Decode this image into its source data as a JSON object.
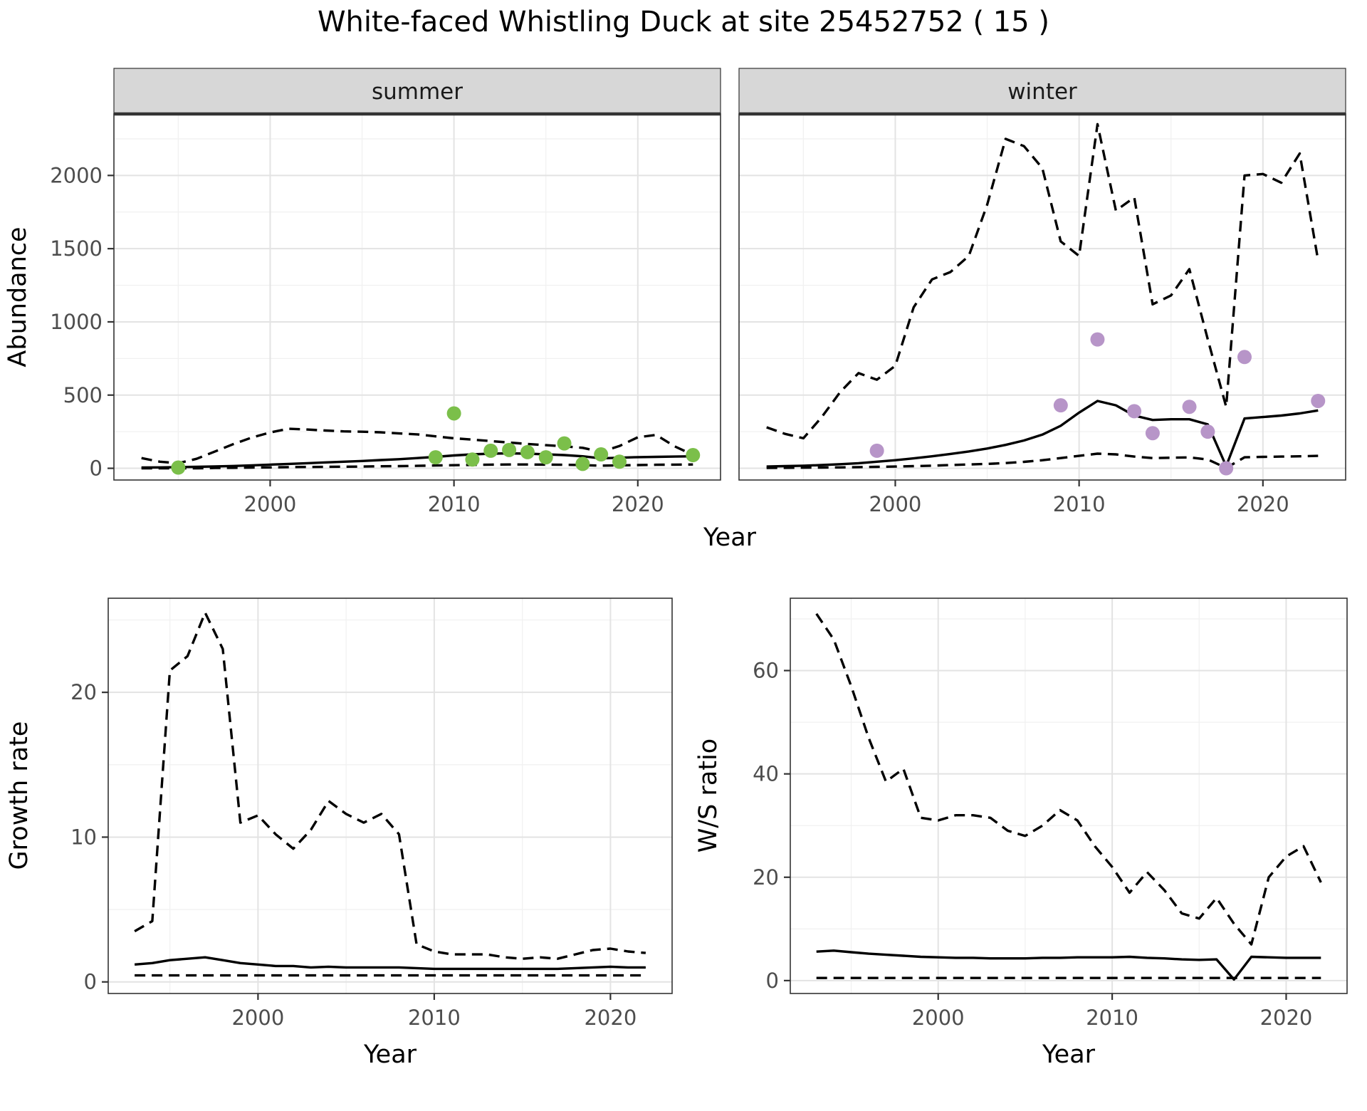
{
  "title": "White-faced Whistling Duck at site 25452752 ( 15 )",
  "colors": {
    "panel_bg": "#ffffff",
    "panel_border": "#333333",
    "strip_bg": "#d7d7d7",
    "grid_major": "#e3e3e3",
    "grid_minor": "#f1f1f1",
    "tick_text": "#4d4d4d",
    "axis_title": "#000000",
    "line": "#000000",
    "summer_point": "#7bbf4a",
    "winter_point": "#b795c8"
  },
  "chart_data": [
    {
      "type": "line",
      "facet": "summer",
      "xlabel": "Year",
      "ylabel": "Abundance",
      "xlim": [
        1991.5,
        2024.5
      ],
      "ylim": [
        -80,
        2420
      ],
      "xticks": [
        2000,
        2010,
        2020
      ],
      "yticks": [
        0,
        500,
        1000,
        1500,
        2000
      ],
      "grid": true,
      "series": [
        {
          "name": "model-fit",
          "style": "solid",
          "color": "#000000",
          "x": [
            1993,
            1994,
            1995,
            1996,
            1997,
            1998,
            1999,
            2000,
            2001,
            2002,
            2003,
            2004,
            2005,
            2006,
            2007,
            2008,
            2009,
            2010,
            2011,
            2012,
            2013,
            2014,
            2015,
            2016,
            2017,
            2018,
            2019,
            2020,
            2021,
            2022,
            2023
          ],
          "y": [
            5,
            6,
            8,
            10,
            13,
            16,
            20,
            25,
            30,
            35,
            40,
            45,
            50,
            56,
            62,
            70,
            78,
            88,
            95,
            100,
            102,
            100,
            95,
            90,
            82,
            68,
            72,
            76,
            78,
            80,
            82
          ]
        },
        {
          "name": "upper-ci",
          "style": "dashed",
          "color": "#000000",
          "x": [
            1993,
            1994,
            1995,
            1996,
            1997,
            1998,
            1999,
            2000,
            2001,
            2002,
            2003,
            2004,
            2005,
            2006,
            2007,
            2008,
            2009,
            2010,
            2011,
            2012,
            2013,
            2014,
            2015,
            2016,
            2017,
            2018,
            2019,
            2020,
            2021,
            2022,
            2023
          ],
          "y": [
            70,
            45,
            35,
            65,
            115,
            165,
            210,
            245,
            270,
            265,
            258,
            252,
            250,
            246,
            238,
            232,
            218,
            205,
            196,
            186,
            176,
            166,
            158,
            150,
            140,
            112,
            152,
            212,
            228,
            150,
            92
          ]
        },
        {
          "name": "lower-ci",
          "style": "dashed",
          "color": "#000000",
          "x": [
            1993,
            1994,
            1995,
            1996,
            1997,
            1998,
            1999,
            2000,
            2001,
            2002,
            2003,
            2004,
            2005,
            2006,
            2007,
            2008,
            2009,
            2010,
            2011,
            2012,
            2013,
            2014,
            2015,
            2016,
            2017,
            2018,
            2019,
            2020,
            2021,
            2022,
            2023
          ],
          "y": [
            0,
            0,
            0,
            0,
            2,
            3,
            5,
            6,
            8,
            9,
            10,
            11,
            12,
            14,
            15,
            17,
            19,
            21,
            23,
            25,
            26,
            26,
            25,
            24,
            22,
            18,
            20,
            22,
            24,
            25,
            26
          ]
        },
        {
          "name": "summer-observations",
          "style": "points",
          "color": "#7bbf4a",
          "x": [
            1995,
            2009,
            2010,
            2011,
            2012,
            2013,
            2014,
            2015,
            2016,
            2017,
            2018,
            2019,
            2023
          ],
          "y": [
            5,
            75,
            375,
            60,
            120,
            125,
            110,
            75,
            170,
            30,
            95,
            45,
            90
          ]
        }
      ]
    },
    {
      "type": "line",
      "facet": "winter",
      "xlabel": "Year",
      "ylabel": "",
      "xlim": [
        1991.5,
        2024.5
      ],
      "ylim": [
        -80,
        2420
      ],
      "xticks": [
        2000,
        2010,
        2020
      ],
      "yticks": [
        0,
        500,
        1000,
        1500,
        2000
      ],
      "grid": true,
      "series": [
        {
          "name": "model-fit",
          "style": "solid",
          "color": "#000000",
          "x": [
            1993,
            1994,
            1995,
            1996,
            1997,
            1998,
            1999,
            2000,
            2001,
            2002,
            2003,
            2004,
            2005,
            2006,
            2007,
            2008,
            2009,
            2010,
            2011,
            2012,
            2013,
            2014,
            2015,
            2016,
            2017,
            2018,
            2019,
            2020,
            2021,
            2022,
            2023
          ],
          "y": [
            12,
            15,
            18,
            22,
            28,
            35,
            45,
            55,
            68,
            82,
            98,
            115,
            135,
            160,
            190,
            230,
            290,
            380,
            460,
            430,
            360,
            330,
            335,
            335,
            300,
            15,
            340,
            350,
            360,
            375,
            395
          ]
        },
        {
          "name": "upper-ci",
          "style": "dashed",
          "color": "#000000",
          "x": [
            1993,
            1994,
            1995,
            1996,
            1997,
            1998,
            1999,
            2000,
            2001,
            2002,
            2003,
            2004,
            2005,
            2006,
            2007,
            2008,
            2009,
            2010,
            2011,
            2012,
            2013,
            2014,
            2015,
            2016,
            2017,
            2018,
            2019,
            2020,
            2021,
            2022,
            2023
          ],
          "y": [
            280,
            235,
            205,
            350,
            520,
            650,
            605,
            700,
            1100,
            1290,
            1340,
            1450,
            1800,
            2250,
            2200,
            2050,
            1550,
            1450,
            2350,
            1760,
            1850,
            1120,
            1180,
            1360,
            880,
            420,
            2000,
            2010,
            1950,
            2150,
            1420
          ]
        },
        {
          "name": "lower-ci",
          "style": "dashed",
          "color": "#000000",
          "x": [
            1993,
            1994,
            1995,
            1996,
            1997,
            1998,
            1999,
            2000,
            2001,
            2002,
            2003,
            2004,
            2005,
            2006,
            2007,
            2008,
            2009,
            2010,
            2011,
            2012,
            2013,
            2014,
            2015,
            2016,
            2017,
            2018,
            2019,
            2020,
            2021,
            2022,
            2023
          ],
          "y": [
            2,
            3,
            4,
            5,
            6,
            8,
            10,
            12,
            15,
            18,
            22,
            26,
            30,
            36,
            44,
            55,
            70,
            85,
            100,
            95,
            80,
            70,
            72,
            74,
            60,
            2,
            75,
            78,
            80,
            82,
            85
          ]
        },
        {
          "name": "winter-observations",
          "style": "points",
          "color": "#b795c8",
          "x": [
            1999,
            2009,
            2011,
            2013,
            2014,
            2016,
            2017,
            2018,
            2019,
            2023
          ],
          "y": [
            120,
            430,
            880,
            390,
            240,
            420,
            250,
            0,
            760,
            460
          ]
        }
      ]
    },
    {
      "type": "line",
      "facet": "",
      "xlabel": "Year",
      "ylabel": "Growth rate",
      "xlim": [
        1991.5,
        2023.5
      ],
      "ylim": [
        -0.8,
        26.5
      ],
      "xticks": [
        2000,
        2010,
        2020
      ],
      "yticks": [
        0,
        10,
        20
      ],
      "grid": true,
      "series": [
        {
          "name": "model-fit",
          "style": "solid",
          "color": "#000000",
          "x": [
            1993,
            1994,
            1995,
            1996,
            1997,
            1998,
            1999,
            2000,
            2001,
            2002,
            2003,
            2004,
            2005,
            2006,
            2007,
            2008,
            2009,
            2010,
            2011,
            2012,
            2013,
            2014,
            2015,
            2016,
            2017,
            2018,
            2019,
            2020,
            2021,
            2022
          ],
          "y": [
            1.2,
            1.3,
            1.5,
            1.6,
            1.7,
            1.5,
            1.3,
            1.2,
            1.1,
            1.1,
            1.0,
            1.05,
            1.0,
            1.0,
            1.0,
            1.0,
            0.95,
            0.9,
            0.9,
            0.9,
            0.9,
            0.9,
            0.9,
            0.9,
            0.9,
            0.95,
            1.0,
            1.05,
            1.0,
            1.0
          ]
        },
        {
          "name": "upper-ci",
          "style": "dashed",
          "color": "#000000",
          "x": [
            1993,
            1994,
            1995,
            1996,
            1997,
            1998,
            1999,
            2000,
            2001,
            2002,
            2003,
            2004,
            2005,
            2006,
            2007,
            2008,
            2009,
            2010,
            2011,
            2012,
            2013,
            2014,
            2015,
            2016,
            2017,
            2018,
            2019,
            2020,
            2021,
            2022
          ],
          "y": [
            3.5,
            4.2,
            21.5,
            22.5,
            25.5,
            23.0,
            11.0,
            11.5,
            10.2,
            9.2,
            10.5,
            12.5,
            11.6,
            11.0,
            11.6,
            10.2,
            2.6,
            2.1,
            1.9,
            1.9,
            1.9,
            1.7,
            1.6,
            1.7,
            1.6,
            1.9,
            2.2,
            2.3,
            2.1,
            2.0
          ]
        },
        {
          "name": "lower-ci",
          "style": "dashed",
          "color": "#000000",
          "x": [
            1993,
            1994,
            1995,
            1996,
            1997,
            1998,
            1999,
            2000,
            2001,
            2002,
            2003,
            2004,
            2005,
            2006,
            2007,
            2008,
            2009,
            2010,
            2011,
            2012,
            2013,
            2014,
            2015,
            2016,
            2017,
            2018,
            2019,
            2020,
            2021,
            2022
          ],
          "y": [
            0.45,
            0.45,
            0.45,
            0.45,
            0.45,
            0.45,
            0.45,
            0.45,
            0.45,
            0.45,
            0.45,
            0.45,
            0.45,
            0.45,
            0.45,
            0.45,
            0.45,
            0.45,
            0.45,
            0.45,
            0.45,
            0.45,
            0.45,
            0.45,
            0.45,
            0.45,
            0.45,
            0.45,
            0.45,
            0.45
          ]
        }
      ]
    },
    {
      "type": "line",
      "facet": "",
      "xlabel": "Year",
      "ylabel": "W/S ratio",
      "xlim": [
        1991.5,
        2023.5
      ],
      "ylim": [
        -2.5,
        74
      ],
      "xticks": [
        2000,
        2010,
        2020
      ],
      "yticks": [
        0,
        20,
        40,
        60
      ],
      "grid": true,
      "series": [
        {
          "name": "model-fit",
          "style": "solid",
          "color": "#000000",
          "x": [
            1993,
            1994,
            1995,
            1996,
            1997,
            1998,
            1999,
            2000,
            2001,
            2002,
            2003,
            2004,
            2005,
            2006,
            2007,
            2008,
            2009,
            2010,
            2011,
            2012,
            2013,
            2014,
            2015,
            2016,
            2017,
            2018,
            2019,
            2020,
            2021,
            2022
          ],
          "y": [
            5.6,
            5.8,
            5.5,
            5.2,
            5.0,
            4.8,
            4.6,
            4.5,
            4.4,
            4.4,
            4.3,
            4.3,
            4.3,
            4.4,
            4.4,
            4.5,
            4.5,
            4.5,
            4.6,
            4.4,
            4.3,
            4.1,
            4.0,
            4.1,
            0.2,
            4.6,
            4.5,
            4.4,
            4.4,
            4.4
          ]
        },
        {
          "name": "upper-ci",
          "style": "dashed",
          "color": "#000000",
          "x": [
            1993,
            1994,
            1995,
            1996,
            1997,
            1998,
            1999,
            2000,
            2001,
            2002,
            2003,
            2004,
            2005,
            2006,
            2007,
            2008,
            2009,
            2010,
            2011,
            2012,
            2013,
            2014,
            2015,
            2016,
            2017,
            2018,
            2019,
            2020,
            2021,
            2022
          ],
          "y": [
            71,
            66,
            57,
            47,
            38.5,
            41,
            31.5,
            31,
            32,
            32,
            31.5,
            29,
            28,
            30,
            33,
            31,
            26,
            22,
            17,
            21,
            17.5,
            13,
            12,
            16,
            11,
            7,
            20,
            24,
            26,
            19
          ]
        },
        {
          "name": "lower-ci",
          "style": "dashed",
          "color": "#000000",
          "x": [
            1993,
            1994,
            1995,
            1996,
            1997,
            1998,
            1999,
            2000,
            2001,
            2002,
            2003,
            2004,
            2005,
            2006,
            2007,
            2008,
            2009,
            2010,
            2011,
            2012,
            2013,
            2014,
            2015,
            2016,
            2017,
            2018,
            2019,
            2020,
            2021,
            2022
          ],
          "y": [
            0.5,
            0.5,
            0.5,
            0.5,
            0.5,
            0.5,
            0.5,
            0.5,
            0.5,
            0.5,
            0.5,
            0.5,
            0.5,
            0.5,
            0.5,
            0.5,
            0.5,
            0.5,
            0.5,
            0.5,
            0.5,
            0.5,
            0.5,
            0.5,
            0.5,
            0.5,
            0.5,
            0.5,
            0.5,
            0.5
          ]
        }
      ]
    }
  ]
}
